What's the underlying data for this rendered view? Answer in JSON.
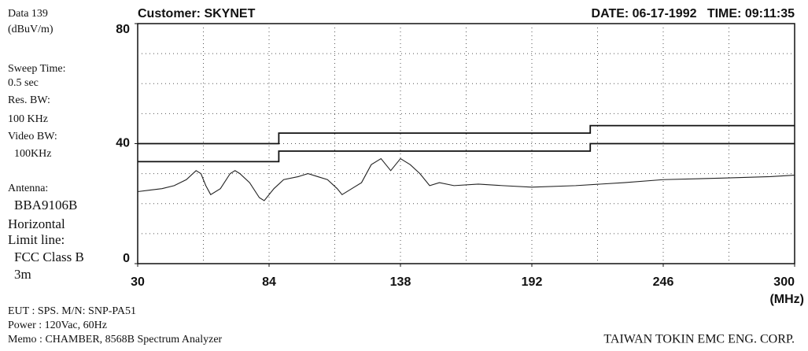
{
  "chart_data": {
    "type": "line",
    "title": "Customer: SKYNET",
    "subtitle": "DATE: 06-17-1992   TIME: 09:11:35",
    "x_label": "(MHz)",
    "xlim": [
      30,
      300
    ],
    "xticks": [
      30,
      84,
      138,
      192,
      246,
      300
    ],
    "xgrid": [
      57,
      84,
      111,
      138,
      165,
      192,
      219,
      246,
      273
    ],
    "ylim": [
      0,
      80
    ],
    "yticks": [
      0,
      40,
      80
    ],
    "ygrid": [
      10,
      20,
      30,
      40,
      50,
      60,
      70
    ],
    "grid": true,
    "series": [
      {
        "color": "#111111",
        "x": [
          30,
          88,
          88,
          216,
          216,
          300
        ],
        "values": [
          40,
          40,
          43.5,
          43.5,
          46,
          46
        ]
      },
      {
        "color": "#111111",
        "x": [
          30,
          88,
          88,
          216,
          216,
          300
        ],
        "values": [
          34,
          34,
          37.5,
          37.5,
          40,
          40
        ]
      },
      {
        "color": "#222222",
        "x": [
          30,
          35,
          40,
          45,
          50,
          54,
          56,
          58,
          60,
          64,
          68,
          70,
          72,
          76,
          80,
          82,
          86,
          90,
          96,
          100,
          104,
          108,
          112,
          114,
          118,
          122,
          126,
          130,
          134,
          138,
          142,
          146,
          150,
          154,
          160,
          170,
          180,
          192,
          210,
          230,
          246,
          270,
          290,
          300
        ],
        "values": [
          24,
          24.5,
          25,
          26,
          28,
          31,
          30,
          26,
          23,
          25,
          30,
          31,
          30,
          27,
          22,
          21,
          25,
          28,
          29,
          30,
          29,
          28,
          25,
          23,
          25,
          27,
          33,
          35,
          31,
          35,
          33,
          30,
          26,
          27,
          26,
          26.5,
          26,
          25.5,
          26,
          27,
          28,
          28.5,
          29,
          29.5
        ]
      }
    ]
  },
  "sidebar": [
    "Data   139",
    "(dBuV/m)",
    "Sweep Time:",
    "0.5 sec",
    "Res.  BW:",
    "100 KHz",
    "Video  BW:",
    "100KHz",
    "Antenna:",
    "BBA9106B",
    "Horizontal",
    "Limit line:",
    "FCC Class B",
    "3m"
  ],
  "footer": [
    "EUT    : SPS.  M/N: SNP-PA51",
    "Power  : 120Vac, 60Hz",
    "Memo  : CHAMBER, 8568B Spectrum Analyzer",
    "TAIWAN TOKIN EMC ENG. CORP."
  ]
}
